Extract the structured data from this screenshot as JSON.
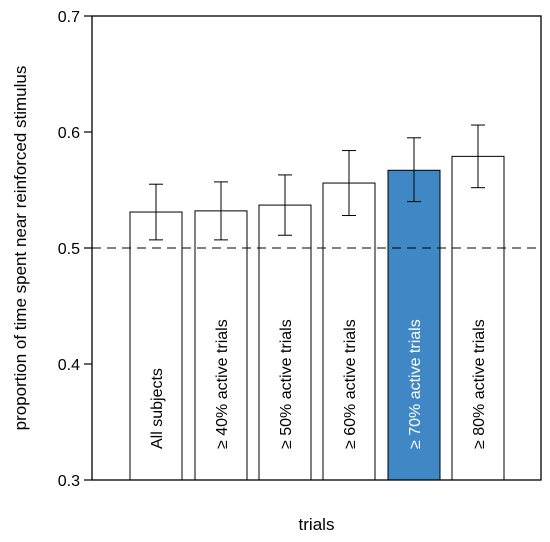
{
  "chart_data": {
    "type": "bar",
    "title": "",
    "xlabel": "trials",
    "ylabel": "proportion of time spent near reinforced stimulus",
    "ylim": [
      0.3,
      0.7
    ],
    "yticks": [
      "0.3",
      "0.4",
      "0.5",
      "0.6",
      "0.7"
    ],
    "reference_line": 0.5,
    "categories": [
      "All subjects",
      "≥ 40% active trials",
      "≥ 50% active trials",
      "≥ 60% active trials",
      "≥ 70% active trials",
      "≥ 80% active trials"
    ],
    "values": [
      0.531,
      0.532,
      0.537,
      0.556,
      0.567,
      0.579
    ],
    "error_low": [
      0.507,
      0.507,
      0.511,
      0.528,
      0.54,
      0.552
    ],
    "error_high": [
      0.555,
      0.557,
      0.563,
      0.584,
      0.595,
      0.606
    ],
    "highlight_index": 4,
    "colors": {
      "bar_fill": "#ffffff",
      "highlight_fill": "#3f88c5",
      "outline": "#000000",
      "highlight_text": "#ffffff",
      "text": "#000000"
    },
    "grid": false
  }
}
